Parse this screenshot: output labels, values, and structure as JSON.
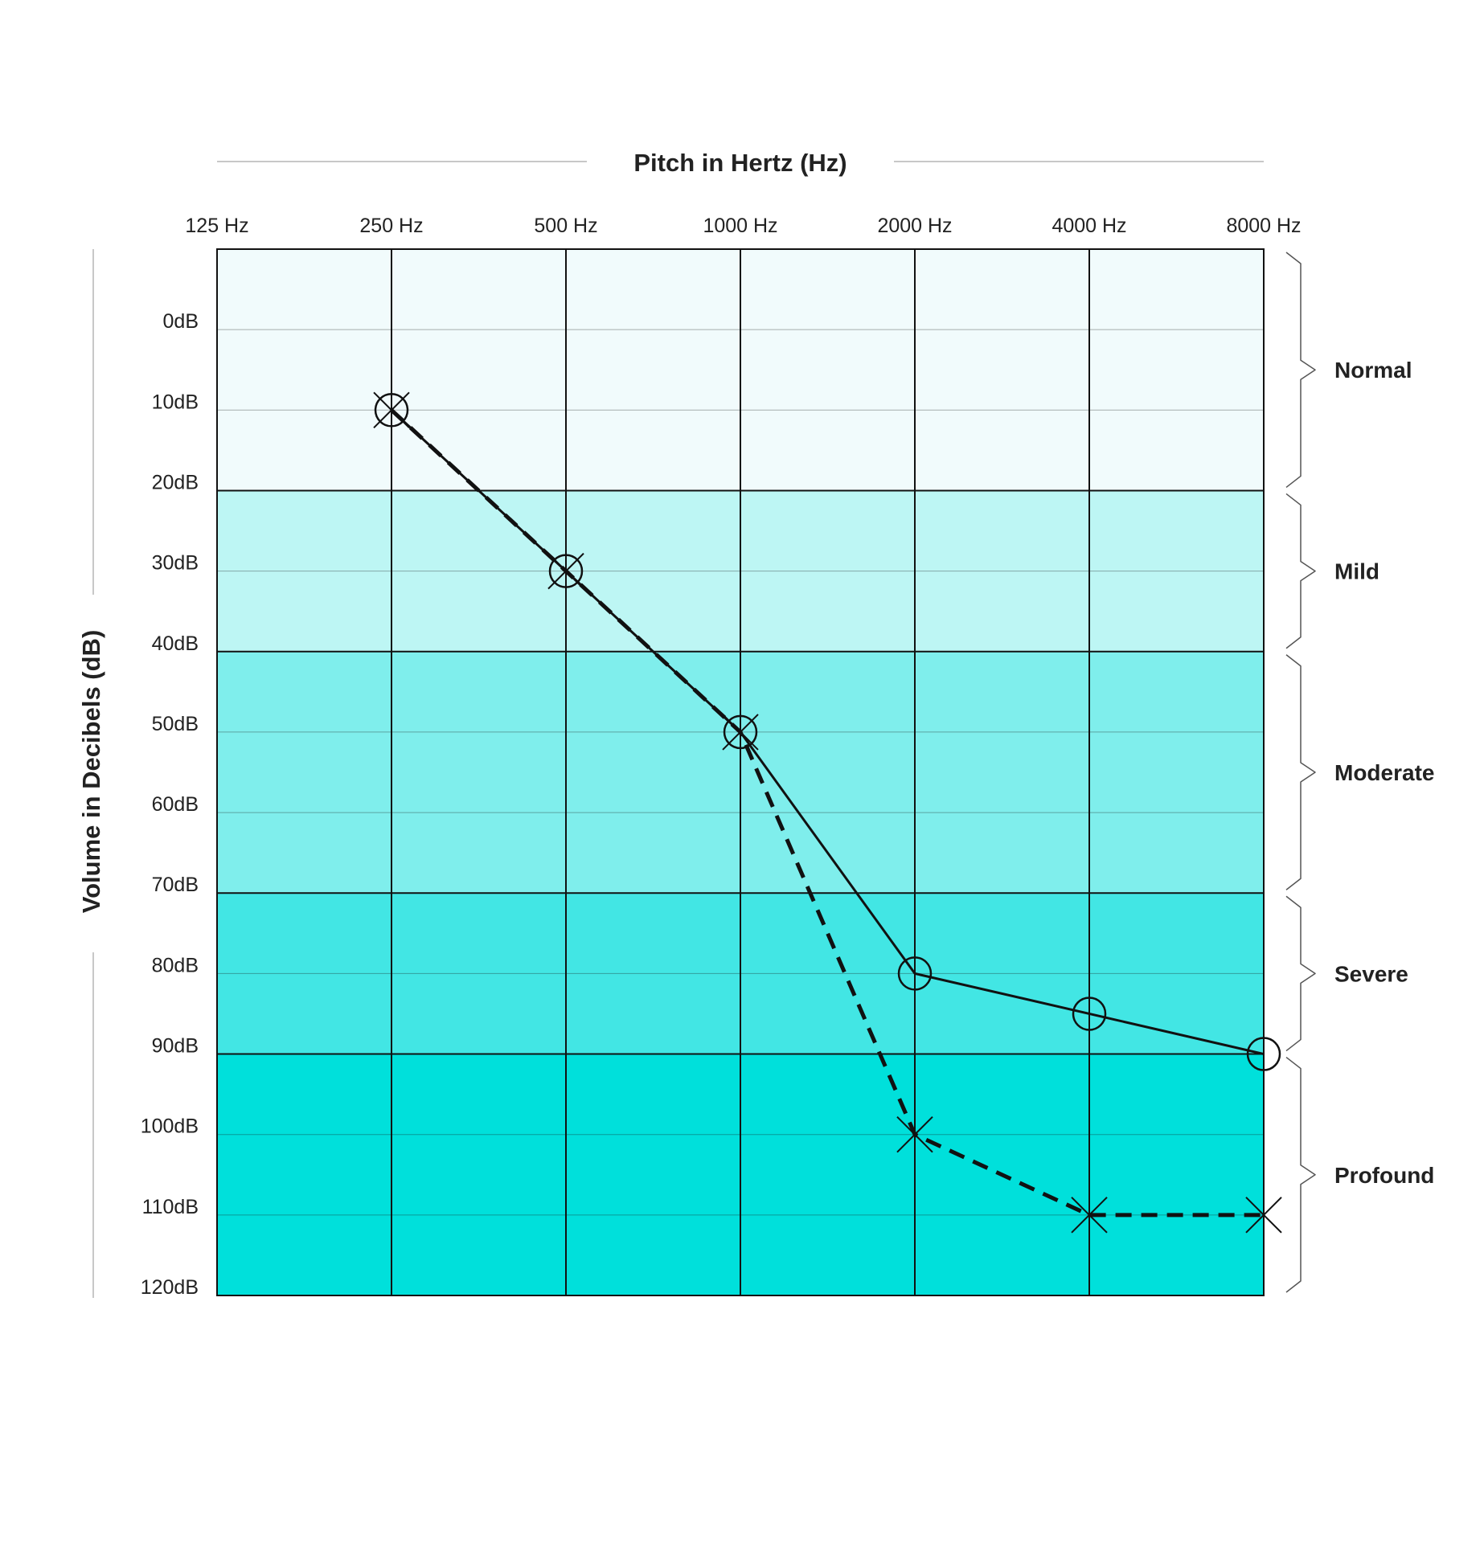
{
  "chart_data": {
    "type": "line",
    "title": "",
    "xlabel": "Pitch in Hertz (Hz)",
    "ylabel": "Volume in Decibels (dB)",
    "x_categories": [
      "125 Hz",
      "250 Hz",
      "500 Hz",
      "1000 Hz",
      "2000 Hz",
      "4000 Hz",
      "8000 Hz"
    ],
    "y_ticks": [
      "0dB",
      "10dB",
      "20dB",
      "30dB",
      "40dB",
      "50dB",
      "60dB",
      "70dB",
      "80dB",
      "90dB",
      "100dB",
      "110dB",
      "120dB"
    ],
    "ylim": [
      -10,
      120
    ],
    "y_inverted": true,
    "grid": true,
    "bands": [
      {
        "label": "Normal",
        "from": -10,
        "to": 20,
        "color": "#f1fbfc"
      },
      {
        "label": "Mild",
        "from": 20,
        "to": 40,
        "color": "#bdf6f4"
      },
      {
        "label": "Moderate",
        "from": 40,
        "to": 70,
        "color": "#7feeec"
      },
      {
        "label": "Severe",
        "from": 70,
        "to": 90,
        "color": "#42e6e4"
      },
      {
        "label": "Profound",
        "from": 90,
        "to": 120,
        "color": "#00e0db"
      }
    ],
    "series": [
      {
        "marker": "circle",
        "line_style": "solid",
        "x": [
          "250 Hz",
          "500 Hz",
          "1000 Hz",
          "2000 Hz",
          "4000 Hz",
          "8000 Hz"
        ],
        "values": [
          10,
          30,
          50,
          80,
          85,
          90
        ]
      },
      {
        "marker": "cross",
        "line_style": "dashed",
        "x": [
          "250 Hz",
          "500 Hz",
          "1000 Hz",
          "2000 Hz",
          "4000 Hz",
          "8000 Hz"
        ],
        "values": [
          10,
          30,
          50,
          100,
          110,
          110
        ]
      }
    ]
  }
}
